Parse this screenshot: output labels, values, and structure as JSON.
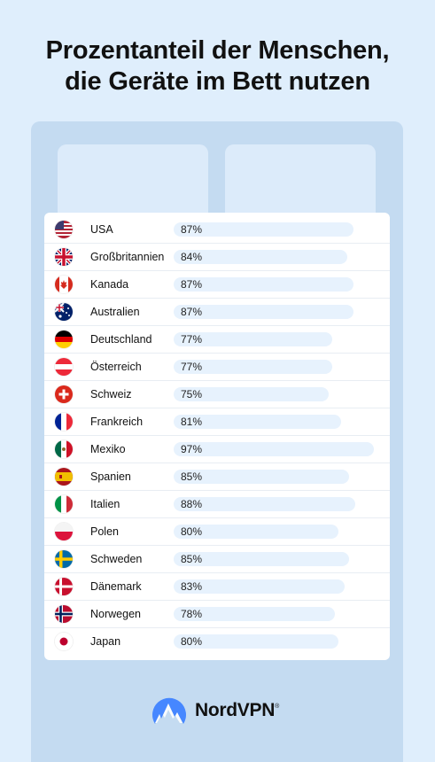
{
  "title_line1": "Prozentanteil der Menschen,",
  "title_line2": "die Geräte im Bett nutzen",
  "brand": "NordVPN",
  "colors": {
    "background": "#dfeefc",
    "bed": "#c4dbf1",
    "bar_track": "#e7f2fd",
    "logo": "#4687ff"
  },
  "chart_data": {
    "type": "bar",
    "orientation": "horizontal",
    "title": "Prozentanteil der Menschen, die Geräte im Bett nutzen",
    "unit": "%",
    "categories": [
      "USA",
      "Großbritannien",
      "Kanada",
      "Australien",
      "Deutschland",
      "Österreich",
      "Schweiz",
      "Frankreich",
      "Mexiko",
      "Spanien",
      "Italien",
      "Polen",
      "Schweden",
      "Dänemark",
      "Norwegen",
      "Japan"
    ],
    "values": [
      87,
      84,
      87,
      87,
      77,
      77,
      75,
      81,
      97,
      85,
      88,
      80,
      85,
      83,
      78,
      80
    ],
    "labels": [
      "87%",
      "84%",
      "87%",
      "87%",
      "77%",
      "77%",
      "75%",
      "81%",
      "97%",
      "85%",
      "88%",
      "80%",
      "85%",
      "83%",
      "78%",
      "80%"
    ],
    "flags": [
      "usa-flag-icon",
      "uk-flag-icon",
      "canada-flag-icon",
      "australia-flag-icon",
      "germany-flag-icon",
      "austria-flag-icon",
      "switzerland-flag-icon",
      "france-flag-icon",
      "mexico-flag-icon",
      "spain-flag-icon",
      "italy-flag-icon",
      "poland-flag-icon",
      "sweden-flag-icon",
      "denmark-flag-icon",
      "norway-flag-icon",
      "japan-flag-icon"
    ]
  }
}
